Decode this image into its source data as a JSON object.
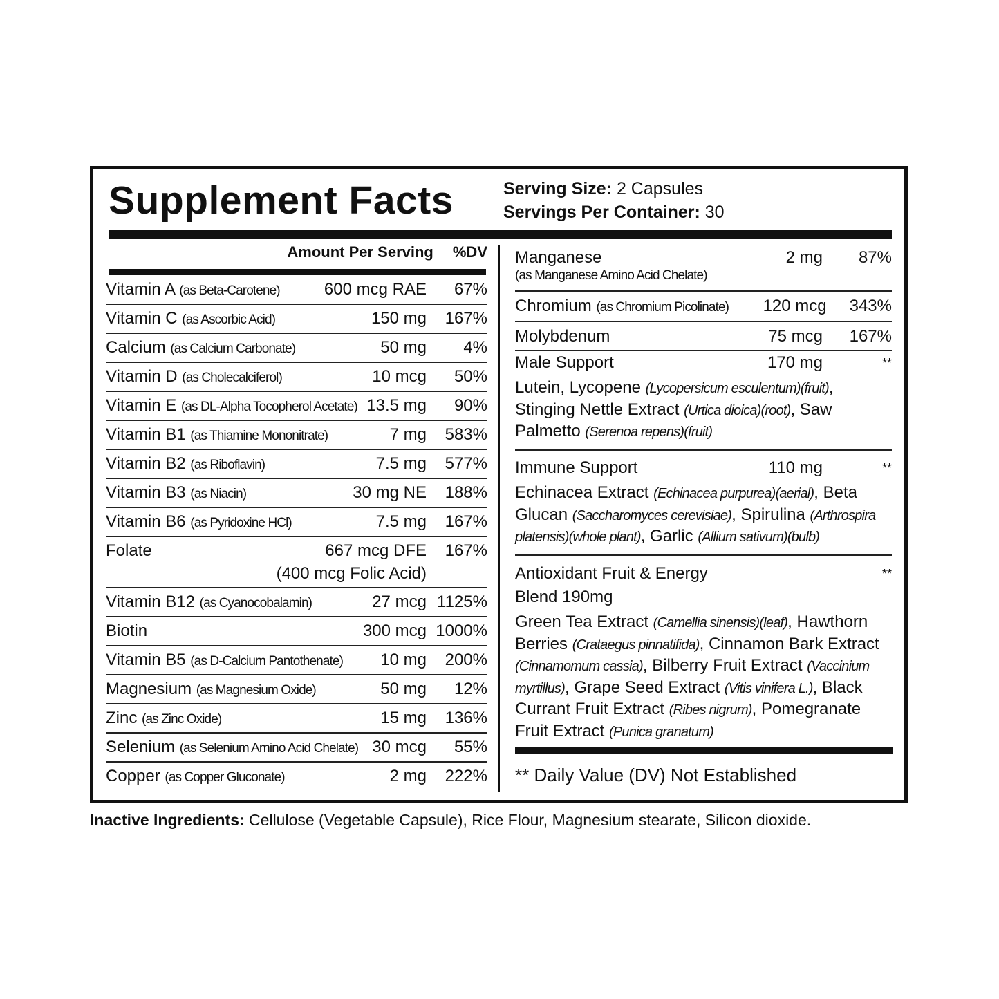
{
  "title": "Supplement Facts",
  "serving": {
    "size_label": "Serving Size:",
    "size_value": "2 Capsules",
    "per_container_label": "Servings Per Container:",
    "per_container_value": "30"
  },
  "left_header": {
    "amount": "Amount Per Serving",
    "dv": "%DV"
  },
  "left_rows": [
    {
      "name": "Vitamin A",
      "sub": "(as Beta-Carotene)",
      "amount": "600 mcg RAE",
      "dv": "67%"
    },
    {
      "name": "Vitamin C",
      "sub": "(as Ascorbic Acid)",
      "amount": "150 mg",
      "dv": "167%"
    },
    {
      "name": "Calcium",
      "sub": "(as Calcium Carbonate)",
      "amount": "50 mg",
      "dv": "4%"
    },
    {
      "name": "Vitamin D",
      "sub": "(as Cholecalciferol)",
      "amount": "10 mcg",
      "dv": "50%"
    },
    {
      "name": "Vitamin E",
      "sub": "(as DL-Alpha Tocopherol Acetate)",
      "amount": "13.5 mg",
      "dv": "90%"
    },
    {
      "name": "Vitamin B1",
      "sub": "(as Thiamine Mononitrate)",
      "amount": "7 mg",
      "dv": "583%"
    },
    {
      "name": "Vitamin B2",
      "sub": "(as Riboflavin)",
      "amount": "7.5 mg",
      "dv": "577%"
    },
    {
      "name": "Vitamin B3",
      "sub": "(as Niacin)",
      "amount": "30 mg NE",
      "dv": "188%"
    },
    {
      "name": "Vitamin B6",
      "sub": "(as Pyridoxine HCl)",
      "amount": "7.5 mg",
      "dv": "167%"
    },
    {
      "name": "Folate",
      "sub": "",
      "amount": "667 mcg DFE",
      "amount2": "(400 mcg Folic Acid)",
      "dv": "167%"
    },
    {
      "name": "Vitamin B12",
      "sub": "(as Cyanocobalamin)",
      "amount": "27 mcg",
      "dv": "1125%"
    },
    {
      "name": "Biotin",
      "sub": "",
      "amount": "300 mcg",
      "dv": "1000%"
    },
    {
      "name": "Vitamin B5",
      "sub": "(as D-Calcium Pantothenate)",
      "amount": "10 mg",
      "dv": "200%"
    },
    {
      "name": "Magnesium",
      "sub": "(as Magnesium Oxide)",
      "amount": "50 mg",
      "dv": "12%"
    },
    {
      "name": "Zinc",
      "sub": "(as Zinc Oxide)",
      "amount": "15 mg",
      "dv": "136%"
    },
    {
      "name": "Selenium",
      "sub": "(as Selenium Amino Acid Chelate)",
      "amount": "30 mcg",
      "dv": "55%"
    },
    {
      "name": "Copper",
      "sub": "(as Copper Gluconate)",
      "amount": "2 mg",
      "dv": "222%"
    }
  ],
  "right_rows": [
    {
      "name": "Manganese",
      "sub": "",
      "subline": "(as Manganese Amino Acid Chelate)",
      "amount": "2 mg",
      "dv": "87%"
    },
    {
      "name": "Chromium",
      "sub": "(as Chromium Picolinate)",
      "amount": "120 mcg",
      "dv": "343%"
    },
    {
      "name": "Molybdenum",
      "sub": "",
      "amount": "75 mcg",
      "dv": "167%"
    }
  ],
  "blends": [
    {
      "name": "Male Support",
      "amount": "170 mg",
      "dv": "**",
      "desc": [
        {
          "t": "Lutein, Lycopene "
        },
        {
          "t": "(Lycopersicum esculentum)(fruit)",
          "i": true
        },
        {
          "t": ", Stinging Nettle Extract "
        },
        {
          "t": "(Urtica dioica)(root)",
          "i": true
        },
        {
          "t": ", Saw Palmetto "
        },
        {
          "t": "(Serenoa repens)(fruit)",
          "i": true
        }
      ]
    },
    {
      "name": "Immune Support",
      "amount": "110 mg",
      "dv": "**",
      "desc": [
        {
          "t": "Echinacea Extract "
        },
        {
          "t": "(Echinacea purpurea)(aerial)",
          "i": true
        },
        {
          "t": ", Beta Glucan "
        },
        {
          "t": "(Saccharomyces cerevisiae)",
          "i": true
        },
        {
          "t": ", Spirulina "
        },
        {
          "t": "(Arthrospira platensis)(whole plant)",
          "i": true
        },
        {
          "t": ", Garlic "
        },
        {
          "t": "(Allium sativum)(bulb)",
          "i": true
        }
      ]
    },
    {
      "name": "Antioxidant Fruit & Energy Blend 190mg",
      "amount": "",
      "dv": "**",
      "desc": [
        {
          "t": "Green Tea Extract "
        },
        {
          "t": "(Camellia sinensis)(leaf)",
          "i": true
        },
        {
          "t": ", Hawthorn Berries "
        },
        {
          "t": "(Crataegus pinnatifida)",
          "i": true
        },
        {
          "t": ", Cinnamon Bark Extract "
        },
        {
          "t": "(Cinnamomum cassia)",
          "i": true
        },
        {
          "t": ", Bilberry Fruit Extract "
        },
        {
          "t": "(Vaccinium myrtillus)",
          "i": true
        },
        {
          "t": ", Grape Seed Extract "
        },
        {
          "t": "(Vitis vinifera L.)",
          "i": true
        },
        {
          "t": ", Black Currant Fruit Extract "
        },
        {
          "t": "(Ribes nigrum)",
          "i": true
        },
        {
          "t": ", Pomegranate Fruit Extract "
        },
        {
          "t": "(Punica granatum)",
          "i": true
        }
      ]
    }
  ],
  "footnote": "** Daily Value (DV) Not Established",
  "inactive": {
    "label": "Inactive Ingredients:",
    "text": " Cellulose (Vegetable Capsule), Rice Flour, Magnesium stearate, Silicon dioxide."
  }
}
